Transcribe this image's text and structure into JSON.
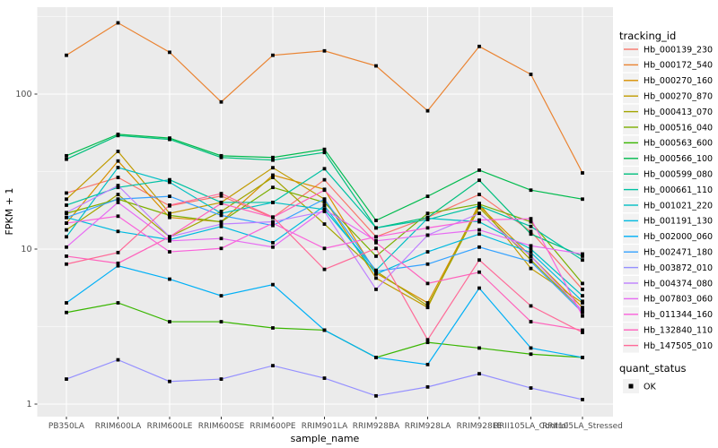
{
  "figure": {
    "legend": {
      "tracking_title": "tracking_id",
      "quant_title": "quant_status",
      "quant_items": [
        {
          "label": "OK",
          "marker": "black-square"
        }
      ]
    },
    "colors": {
      "panel_background": "#EBEBEB",
      "grid": "#FFFFFF",
      "marker": "#000000",
      "tick_label": "#4D4D4D",
      "axis_title": "#000000"
    }
  },
  "chart_data": {
    "type": "line",
    "title": "",
    "xlabel": "sample_name",
    "ylabel": "FPKM + 1",
    "y_scale": "log10",
    "y_ticks": [
      1,
      10,
      100
    ],
    "ylim": [
      1,
      320
    ],
    "grid": "major-and-minor",
    "legend_position": "right",
    "point_marker": {
      "shape": "square",
      "color": "#000000",
      "meaning": "quant_status OK"
    },
    "categories": [
      "PB350LA",
      "RRIM600LA",
      "RRIM600LE",
      "RRIM600SE",
      "RRIM600PE",
      "RRIM901LA",
      "RRIM928BA",
      "RRIM928LA",
      "RRIM928LE",
      "RRII105LA_Control",
      "RRII105LA_Stressed"
    ],
    "series": [
      {
        "name": "Hb_000139_230",
        "color": "#F8766D",
        "values": [
          23,
          29,
          19,
          22,
          16,
          28,
          12,
          16,
          22.5,
          13,
          5.5
        ]
      },
      {
        "name": "Hb_000172_540",
        "color": "#EA8331",
        "values": [
          178,
          288,
          186,
          89,
          178,
          190,
          152,
          78,
          203,
          134,
          31
        ]
      },
      {
        "name": "Hb_000270_160",
        "color": "#D89000",
        "values": [
          14.7,
          37,
          16,
          15,
          30,
          24.3,
          7,
          4.5,
          19,
          9,
          4.2
        ]
      },
      {
        "name": "Hb_000270_870",
        "color": "#C09B00",
        "values": [
          21,
          42.7,
          17,
          20,
          33.5,
          21,
          6.5,
          4.2,
          19.7,
          7.5,
          4.5
        ]
      },
      {
        "name": "Hb_000413_070",
        "color": "#A3A500",
        "values": [
          13.3,
          22.5,
          12,
          17.5,
          29,
          14.5,
          7.2,
          4.3,
          18.5,
          8.5,
          4.0
        ]
      },
      {
        "name": "Hb_000516_040",
        "color": "#7CAE00",
        "values": [
          17,
          21,
          16.5,
          15,
          25,
          20,
          9,
          17,
          19.5,
          15,
          6
        ]
      },
      {
        "name": "Hb_000563_600",
        "color": "#39B600",
        "values": [
          3.9,
          4.5,
          3.4,
          3.4,
          3.1,
          3.0,
          2.0,
          2.5,
          2.3,
          2.1,
          2.0
        ]
      },
      {
        "name": "Hb_000566_100",
        "color": "#00BB4E",
        "values": [
          40,
          55,
          52,
          40,
          39,
          44,
          15.3,
          21.9,
          32.3,
          24,
          21
        ]
      },
      {
        "name": "Hb_000599_080",
        "color": "#00BF7D",
        "values": [
          38,
          54,
          51,
          39,
          37.5,
          42,
          13.7,
          16,
          27.8,
          12.5,
          9
        ]
      },
      {
        "name": "Hb_000661_110",
        "color": "#00C1A3",
        "values": [
          19.2,
          25,
          28,
          20,
          20,
          33,
          13.7,
          15.5,
          19,
          14,
          8.5
        ]
      },
      {
        "name": "Hb_001021_220",
        "color": "#00BFC4",
        "values": [
          12,
          33.6,
          27,
          17,
          20,
          18,
          7.3,
          15.8,
          15,
          10,
          5
        ]
      },
      {
        "name": "Hb_001191_130",
        "color": "#00BAE0",
        "values": [
          16,
          13,
          11.5,
          14,
          11,
          19,
          6.9,
          9.6,
          12.5,
          9.5,
          4.6
        ]
      },
      {
        "name": "Hb_002000_060",
        "color": "#00B0F6",
        "values": [
          4.5,
          7.8,
          6.4,
          5.0,
          5.9,
          3.0,
          2.0,
          1.8,
          5.6,
          2.3,
          2.0
        ]
      },
      {
        "name": "Hb_002471_180",
        "color": "#35A2FF",
        "values": [
          16,
          21,
          21.9,
          16.5,
          14.2,
          21,
          7.2,
          8,
          10.3,
          8.3,
          3.9
        ]
      },
      {
        "name": "Hb_003872_010",
        "color": "#9590FF",
        "values": [
          1.45,
          1.93,
          1.4,
          1.45,
          1.77,
          1.47,
          1.13,
          1.29,
          1.57,
          1.27,
          1.07
        ]
      },
      {
        "name": "Hb_004374_080",
        "color": "#BF80FF",
        "values": [
          17.2,
          25.7,
          12,
          14.5,
          15,
          17.5,
          5.5,
          12.3,
          17,
          9,
          4.0
        ]
      },
      {
        "name": "Hb_007803_060",
        "color": "#E76BF3",
        "values": [
          10.3,
          20,
          11.3,
          11.7,
          10.3,
          18,
          11.3,
          12.3,
          13.3,
          10.5,
          9.3
        ]
      },
      {
        "name": "Hb_011344_160",
        "color": "#FA62DB",
        "values": [
          14.7,
          16.3,
          9.6,
          10.1,
          14.7,
          10.1,
          12,
          13.7,
          15.4,
          15.7,
          3.7
        ]
      },
      {
        "name": "Hb_132840_110",
        "color": "#FF62BC",
        "values": [
          9.0,
          8.1,
          12,
          19.7,
          16,
          24,
          11,
          6,
          7.1,
          3.4,
          3.0
        ]
      },
      {
        "name": "Hb_147505_010",
        "color": "#FF6A98",
        "values": [
          8.0,
          9.5,
          19.2,
          22.8,
          16.1,
          7.4,
          10.1,
          2.6,
          8.5,
          4.3,
          2.9
        ]
      }
    ]
  }
}
